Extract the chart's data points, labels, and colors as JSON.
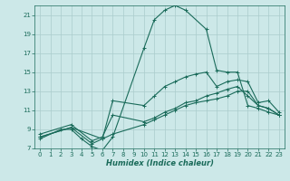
{
  "xlabel": "Humidex (Indice chaleur)",
  "bg_color": "#cce8e8",
  "grid_color": "#aacccc",
  "line_color": "#1a6b5a",
  "xlim": [
    -0.5,
    23.5
  ],
  "ylim": [
    7,
    22
  ],
  "xticks": [
    0,
    1,
    2,
    3,
    4,
    5,
    6,
    7,
    8,
    9,
    10,
    11,
    12,
    13,
    14,
    15,
    16,
    17,
    18,
    19,
    20,
    21,
    22,
    23
  ],
  "yticks": [
    7,
    9,
    11,
    13,
    15,
    17,
    19,
    21
  ],
  "series": [
    {
      "x": [
        0,
        2,
        3,
        4,
        5,
        6,
        7,
        10,
        11,
        12,
        13,
        14,
        16,
        17,
        18,
        19,
        20,
        21,
        22,
        23
      ],
      "y": [
        8.0,
        9.0,
        9.0,
        8.0,
        7.2,
        6.8,
        8.2,
        17.5,
        20.5,
        21.5,
        22.0,
        21.5,
        19.5,
        15.2,
        15.0,
        15.0,
        11.5,
        11.2,
        10.8,
        10.5
      ]
    },
    {
      "x": [
        0,
        3,
        6,
        7,
        10,
        11,
        12,
        13,
        14,
        15,
        16,
        17,
        18,
        19,
        20,
        21,
        22,
        23
      ],
      "y": [
        8.2,
        9.2,
        8.0,
        8.5,
        9.5,
        10.0,
        10.5,
        11.0,
        11.5,
        11.8,
        12.0,
        12.2,
        12.5,
        13.0,
        13.0,
        11.5,
        11.2,
        10.5
      ]
    },
    {
      "x": [
        0,
        3,
        5,
        6,
        7,
        10,
        11,
        12,
        13,
        14,
        15,
        16,
        17,
        18,
        19,
        20,
        21,
        22,
        23
      ],
      "y": [
        8.2,
        9.2,
        7.5,
        8.0,
        12.0,
        11.5,
        12.5,
        13.5,
        14.0,
        14.5,
        14.8,
        15.0,
        13.5,
        14.0,
        14.2,
        14.0,
        11.8,
        12.0,
        10.8
      ]
    },
    {
      "x": [
        0,
        3,
        5,
        6,
        7,
        10,
        11,
        12,
        13,
        14,
        15,
        16,
        17,
        18,
        19,
        20,
        21,
        22,
        23
      ],
      "y": [
        8.5,
        9.5,
        7.8,
        8.2,
        10.5,
        9.8,
        10.2,
        10.8,
        11.2,
        11.8,
        12.0,
        12.5,
        12.8,
        13.2,
        13.5,
        12.5,
        11.5,
        11.2,
        10.5
      ]
    }
  ]
}
